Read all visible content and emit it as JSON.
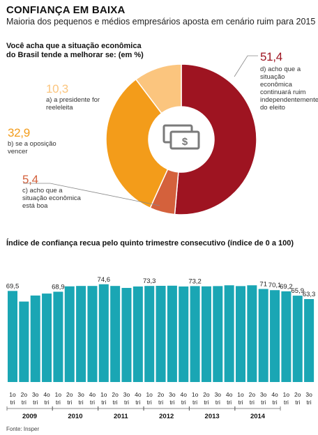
{
  "header": {
    "title": "CONFIANÇA EM BAIXA",
    "subtitle": "Maioria dos pequenos e médios empresários aposta em cenário ruim para 2015"
  },
  "chart_data": [
    {
      "type": "pie",
      "title": "Você acha que a situação econômica do Brasil tende a melhorar se: (em %)",
      "slices": [
        {
          "value": 51.4,
          "value_label": "51,4",
          "label": "d) acho que a situação econômica continuará ruim independentemente do eleito",
          "color": "#9e1421"
        },
        {
          "value": 5.4,
          "value_label": "5,4",
          "label": "c) acho que a situação econômica está boa",
          "color": "#d4613c"
        },
        {
          "value": 32.9,
          "value_label": "32,9",
          "label": "b) se a oposição vencer",
          "color": "#f39c1a"
        },
        {
          "value": 10.3,
          "value_label": "10,3",
          "label": "a) a presidente for reeleleita",
          "color": "#fbc57e"
        }
      ]
    },
    {
      "type": "bar",
      "title": "Índice de confiança recua pelo quinto trimestre consecutivo (índice de 0 a 100)",
      "color": "#1aa6b4",
      "quarters": [
        "1o tri",
        "2o tri",
        "3o tri",
        "4o tri"
      ],
      "years": [
        "2009",
        "2010",
        "2011",
        "2012",
        "2013",
        "2014"
      ],
      "values": [
        69.5,
        61.4,
        66.0,
        67.5,
        68.9,
        73.0,
        73.3,
        73.3,
        74.6,
        73.3,
        71.8,
        72.9,
        73.3,
        73.4,
        73.5,
        72.9,
        73.2,
        73.0,
        73.2,
        73.8,
        73.2,
        73.8,
        71.0,
        70.1,
        69.2,
        65.9,
        63.3
      ],
      "data_labels": {
        "0": "69,5",
        "4": "68,9",
        "8": "74,6",
        "12": "73,3",
        "16": "73,2",
        "22": "71",
        "23": "70,1",
        "24": "69,2",
        "25": "65,9",
        "26": "63,3"
      },
      "ylim": [
        0,
        100
      ]
    }
  ],
  "footer": {
    "source": "Fonte: Insper"
  }
}
